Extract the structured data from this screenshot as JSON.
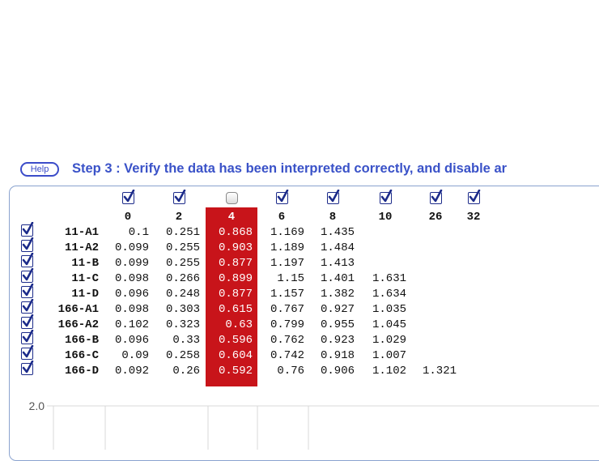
{
  "help_label": "Help",
  "step_title": "Step 3 : Verify the data has been interpreted correctly, and disable ar",
  "columns": [
    {
      "label": "0",
      "checked": true
    },
    {
      "label": "2",
      "checked": true
    },
    {
      "label": "4",
      "checked": false
    },
    {
      "label": "6",
      "checked": true
    },
    {
      "label": "8",
      "checked": true
    },
    {
      "label": "10",
      "checked": true
    },
    {
      "label": "26",
      "checked": true
    },
    {
      "label": "32",
      "checked": true
    }
  ],
  "highlighted_column": "4",
  "rows": [
    {
      "label": "11-A1",
      "checked": true,
      "values": [
        "0.1",
        "0.251",
        "0.868",
        "1.169",
        "1.435",
        "",
        "",
        ""
      ]
    },
    {
      "label": "11-A2",
      "checked": true,
      "values": [
        "0.099",
        "0.255",
        "0.903",
        "1.189",
        "1.484",
        "",
        "",
        ""
      ]
    },
    {
      "label": "11-B",
      "checked": true,
      "values": [
        "0.099",
        "0.255",
        "0.877",
        "1.197",
        "1.413",
        "",
        "",
        ""
      ]
    },
    {
      "label": "11-C",
      "checked": true,
      "values": [
        "0.098",
        "0.266",
        "0.899",
        "1.15",
        "1.401",
        "1.631",
        "",
        ""
      ]
    },
    {
      "label": "11-D",
      "checked": true,
      "values": [
        "0.096",
        "0.248",
        "0.877",
        "1.157",
        "1.382",
        "1.634",
        "",
        ""
      ]
    },
    {
      "label": "166-A1",
      "checked": true,
      "values": [
        "0.098",
        "0.303",
        "0.615",
        "0.767",
        "0.927",
        "1.035",
        "",
        ""
      ]
    },
    {
      "label": "166-A2",
      "checked": true,
      "values": [
        "0.102",
        "0.323",
        "0.63",
        "0.799",
        "0.955",
        "1.045",
        "",
        ""
      ]
    },
    {
      "label": "166-B",
      "checked": true,
      "values": [
        "0.096",
        "0.33",
        "0.596",
        "0.762",
        "0.923",
        "1.029",
        "",
        ""
      ]
    },
    {
      "label": "166-C",
      "checked": true,
      "values": [
        "0.09",
        "0.258",
        "0.604",
        "0.742",
        "0.918",
        "1.007",
        "",
        ""
      ]
    },
    {
      "label": "166-D",
      "checked": true,
      "values": [
        "0.092",
        "0.26",
        "0.592",
        "0.76",
        "0.906",
        "1.102",
        "1.321",
        ""
      ]
    }
  ],
  "chart_data": {
    "type": "line",
    "ytick_labels": [
      "2.0"
    ],
    "series": []
  }
}
